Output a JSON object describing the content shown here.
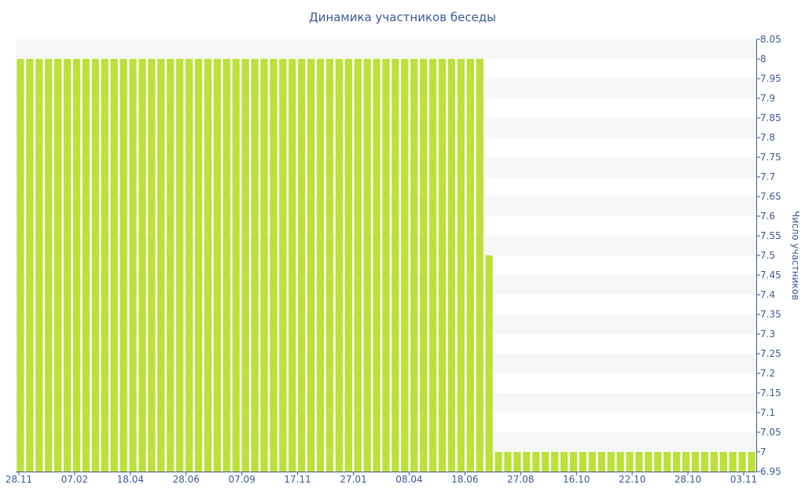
{
  "chart_data": {
    "type": "bar",
    "title": "Динамика участников беседы",
    "xlabel": "",
    "ylabel": "Число участников",
    "ylim": [
      6.95,
      8.05
    ],
    "y_ticks": [
      "6.95",
      "7",
      "7.05",
      "7.1",
      "7.15",
      "7.2",
      "7.25",
      "7.3",
      "7.35",
      "7.4",
      "7.45",
      "7.5",
      "7.55",
      "7.6",
      "7.65",
      "7.7",
      "7.75",
      "7.8",
      "7.85",
      "7.9",
      "7.95",
      "8",
      "8.05"
    ],
    "x_tick_labels": [
      "28.11",
      "07.02",
      "18.04",
      "28.06",
      "07.09",
      "17.11",
      "27.01",
      "08.04",
      "18.06",
      "27.08",
      "16.10",
      "22.10",
      "28.10",
      "03.11"
    ],
    "y_axis_position": "right",
    "grid": "horizontal bands",
    "colors": {
      "bar": "#bde03a",
      "band": "#f7f7f7",
      "axis": "#3d5896",
      "text": "#3d5896"
    },
    "series": [
      {
        "values": [
          8,
          8,
          8,
          8,
          8,
          8,
          8,
          8,
          8,
          8,
          8,
          8,
          8,
          8,
          8,
          8,
          8,
          8,
          8,
          8,
          8,
          8,
          8,
          8,
          8,
          8,
          8,
          8,
          8,
          8,
          8,
          8,
          8,
          8,
          8,
          8,
          8,
          8,
          8,
          8,
          8,
          8,
          8,
          8,
          8,
          8,
          8,
          8,
          8,
          8,
          7.5,
          7,
          7,
          7,
          7,
          7,
          7,
          7,
          7,
          7,
          7,
          7,
          7,
          7,
          7,
          7,
          7,
          7,
          7,
          7,
          7,
          7,
          7,
          7,
          7,
          7,
          7,
          7,
          7
        ]
      }
    ]
  }
}
